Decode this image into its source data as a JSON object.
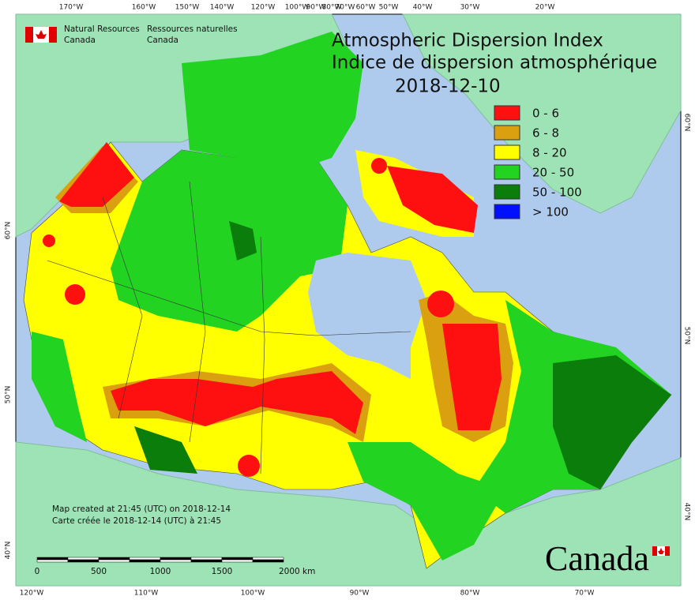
{
  "logo": {
    "english": [
      "Natural Resources",
      "Canada"
    ],
    "french": [
      "Ressources naturelles",
      "Canada"
    ]
  },
  "title": "Atmospheric Dispersion Index",
  "subtitle": "Indice de dispersion atmosphérique",
  "date": "2018-12-10",
  "legend": [
    {
      "label": "0 - 6",
      "color": "#ff1010"
    },
    {
      "label": "6 - 8",
      "color": "#daa010"
    },
    {
      "label": "8 - 20",
      "color": "#ffff00"
    },
    {
      "label": "20 - 50",
      "color": "#22d322"
    },
    {
      "label": "50 - 100",
      "color": "#0a7d0a"
    },
    {
      "label": "> 100",
      "color": "#0010ff"
    }
  ],
  "graticule": {
    "top": [
      "170°W",
      "160°W",
      "150°W",
      "140°W",
      "120°W",
      "100°W",
      "90°W",
      "80°W",
      "70°W",
      "60°W",
      "50°W",
      "40°W",
      "30°W",
      "20°W"
    ],
    "bottom": [
      "120°W",
      "110°W",
      "100°W",
      "90°W",
      "80°W",
      "70°W"
    ],
    "left": [
      "60°N",
      "50°N",
      "40°N"
    ],
    "right": [
      "60°N",
      "50°N",
      "40°N"
    ]
  },
  "credits": [
    "Map created at 21:45 (UTC) on 2018-12-14",
    "Carte créée le 2018-12-14 (UTC) à 21:45"
  ],
  "scale": [
    "0",
    "500",
    "1000",
    "1500",
    "2000 km"
  ],
  "wordmark": "Canada"
}
